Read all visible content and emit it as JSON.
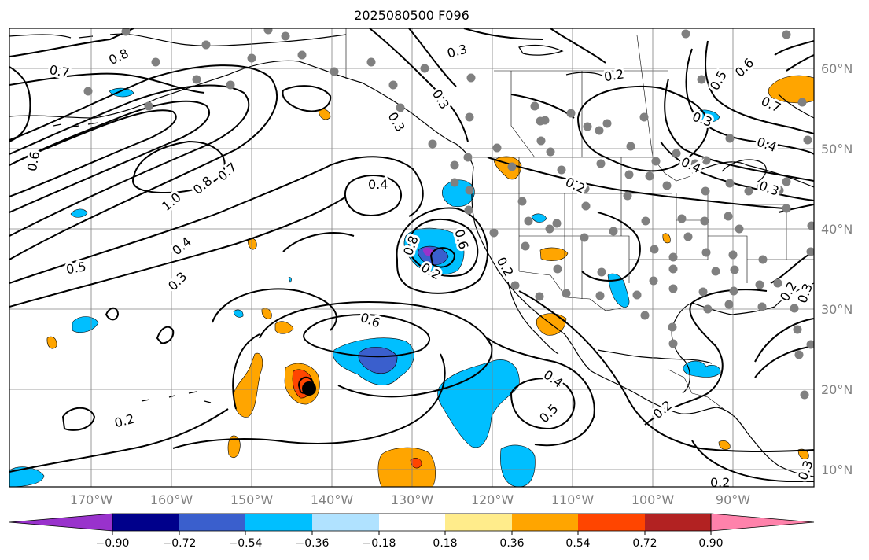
{
  "title": "2025080500 F096",
  "lat_labels": [
    "60°N",
    "50°N",
    "40°N",
    "30°N",
    "20°N",
    "10°N"
  ],
  "lon_labels": [
    "170°W",
    "160°W",
    "150°W",
    "140°W",
    "130°W",
    "120°W",
    "110°W",
    "100°W",
    "90°W"
  ],
  "colorbar": {
    "colors": [
      "#9932cc",
      "#00008b",
      "#3a5fcd",
      "#00bfff",
      "#b0e2ff",
      "#ffffff",
      "#ffec8b",
      "#ffa500",
      "#ff4500",
      "#b22222",
      "#ff82ab"
    ],
    "tick_labels": [
      "−0.90",
      "−0.72",
      "−0.54",
      "−0.36",
      "−0.18",
      "0.18",
      "0.36",
      "0.54",
      "0.72",
      "0.90"
    ],
    "extend": "both"
  },
  "contour_labels": [
    "0.8",
    "0.7",
    "0.6",
    "1.0",
    "0.8",
    "0.7",
    "0.5",
    "0.4",
    "0.3",
    "0.2",
    "0.4",
    "0.3",
    "0.3",
    "0.2",
    "0.2",
    "0.5",
    "0.6",
    "0.3",
    "0.4",
    "0.4",
    "0.3",
    "0.7",
    "0.8",
    "0.6",
    "0.6",
    "0.4",
    "0.5",
    "0.2",
    "0.2",
    "0.2",
    "0.2",
    "0.3",
    "0.3",
    "0.3",
    "0.2"
  ],
  "colors": {
    "contour": "#000000",
    "grid": "#808080",
    "coast": "#000000",
    "station_dot": "#808080"
  }
}
